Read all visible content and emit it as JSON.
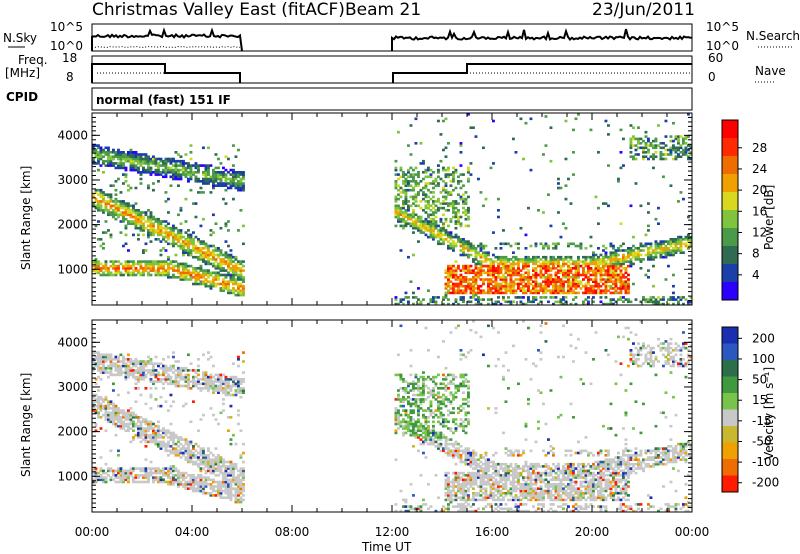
{
  "header": {
    "title": "Christmas Valley East (fitACF)",
    "beam": "Beam 21",
    "date": "23/Jun/2011"
  },
  "strip_labels": {
    "nsky": "N.Sky",
    "nsearch": "N.Search",
    "freq_line1": "Freq.",
    "freq_line2": "[MHz]",
    "nave": "Nave",
    "cpid": "CPID",
    "cpid_value": "normal (fast) 151 IF"
  },
  "scale_ticks": {
    "noise_left": [
      "10^5",
      "10^0"
    ],
    "noise_right": [
      "10^5",
      "10^0"
    ],
    "freq_left": [
      "18",
      "8"
    ],
    "nave_right": [
      "60",
      "0"
    ]
  },
  "colors": {
    "power": [
      "#2b00ff",
      "#1b3fa8",
      "#2e6b52",
      "#4a9a4a",
      "#7fc43c",
      "#d8d820",
      "#f0a000",
      "#ef6d00",
      "#ff2a00",
      "#ff0000"
    ],
    "velocity": [
      "#1a2fb0",
      "#2a57c0",
      "#2d6e4a",
      "#3f9a3f",
      "#78c44a",
      "#c8c8c8",
      "#c8b830",
      "#f0a000",
      "#ef6d00",
      "#ff1a00"
    ]
  },
  "chart_data": [
    {
      "type": "heatmap",
      "name": "power-panel",
      "ylabel": "Slant Range [km]",
      "y_ticks": [
        "1000",
        "2000",
        "3000",
        "4000"
      ],
      "ylim": [
        200,
        4500
      ],
      "x_ticks": [
        "00:00",
        "04:00",
        "08:00",
        "12:00",
        "16:00",
        "20:00",
        "00:00"
      ],
      "xlim_hours": [
        0,
        24
      ],
      "data_gap_hours": [
        6,
        12
      ],
      "colorbar": {
        "label": "Power [dB]",
        "ticks": [
          "4",
          "8",
          "12",
          "16",
          "20",
          "24",
          "28"
        ]
      }
    },
    {
      "type": "heatmap",
      "name": "velocity-panel",
      "ylabel": "Slant Range [km]",
      "y_ticks": [
        "1000",
        "2000",
        "3000",
        "4000"
      ],
      "ylim": [
        200,
        4500
      ],
      "x_ticks": [
        "00:00",
        "04:00",
        "08:00",
        "12:00",
        "16:00",
        "20:00",
        "00:00"
      ],
      "xlabel": "Time UT",
      "xlim_hours": [
        0,
        24
      ],
      "data_gap_hours": [
        6,
        12
      ],
      "colorbar": {
        "label": "Velocity [m s⁻¹]",
        "ticks": [
          "200",
          "100",
          "50",
          "15",
          "-15",
          "-50",
          "-100",
          "-200"
        ]
      }
    }
  ]
}
